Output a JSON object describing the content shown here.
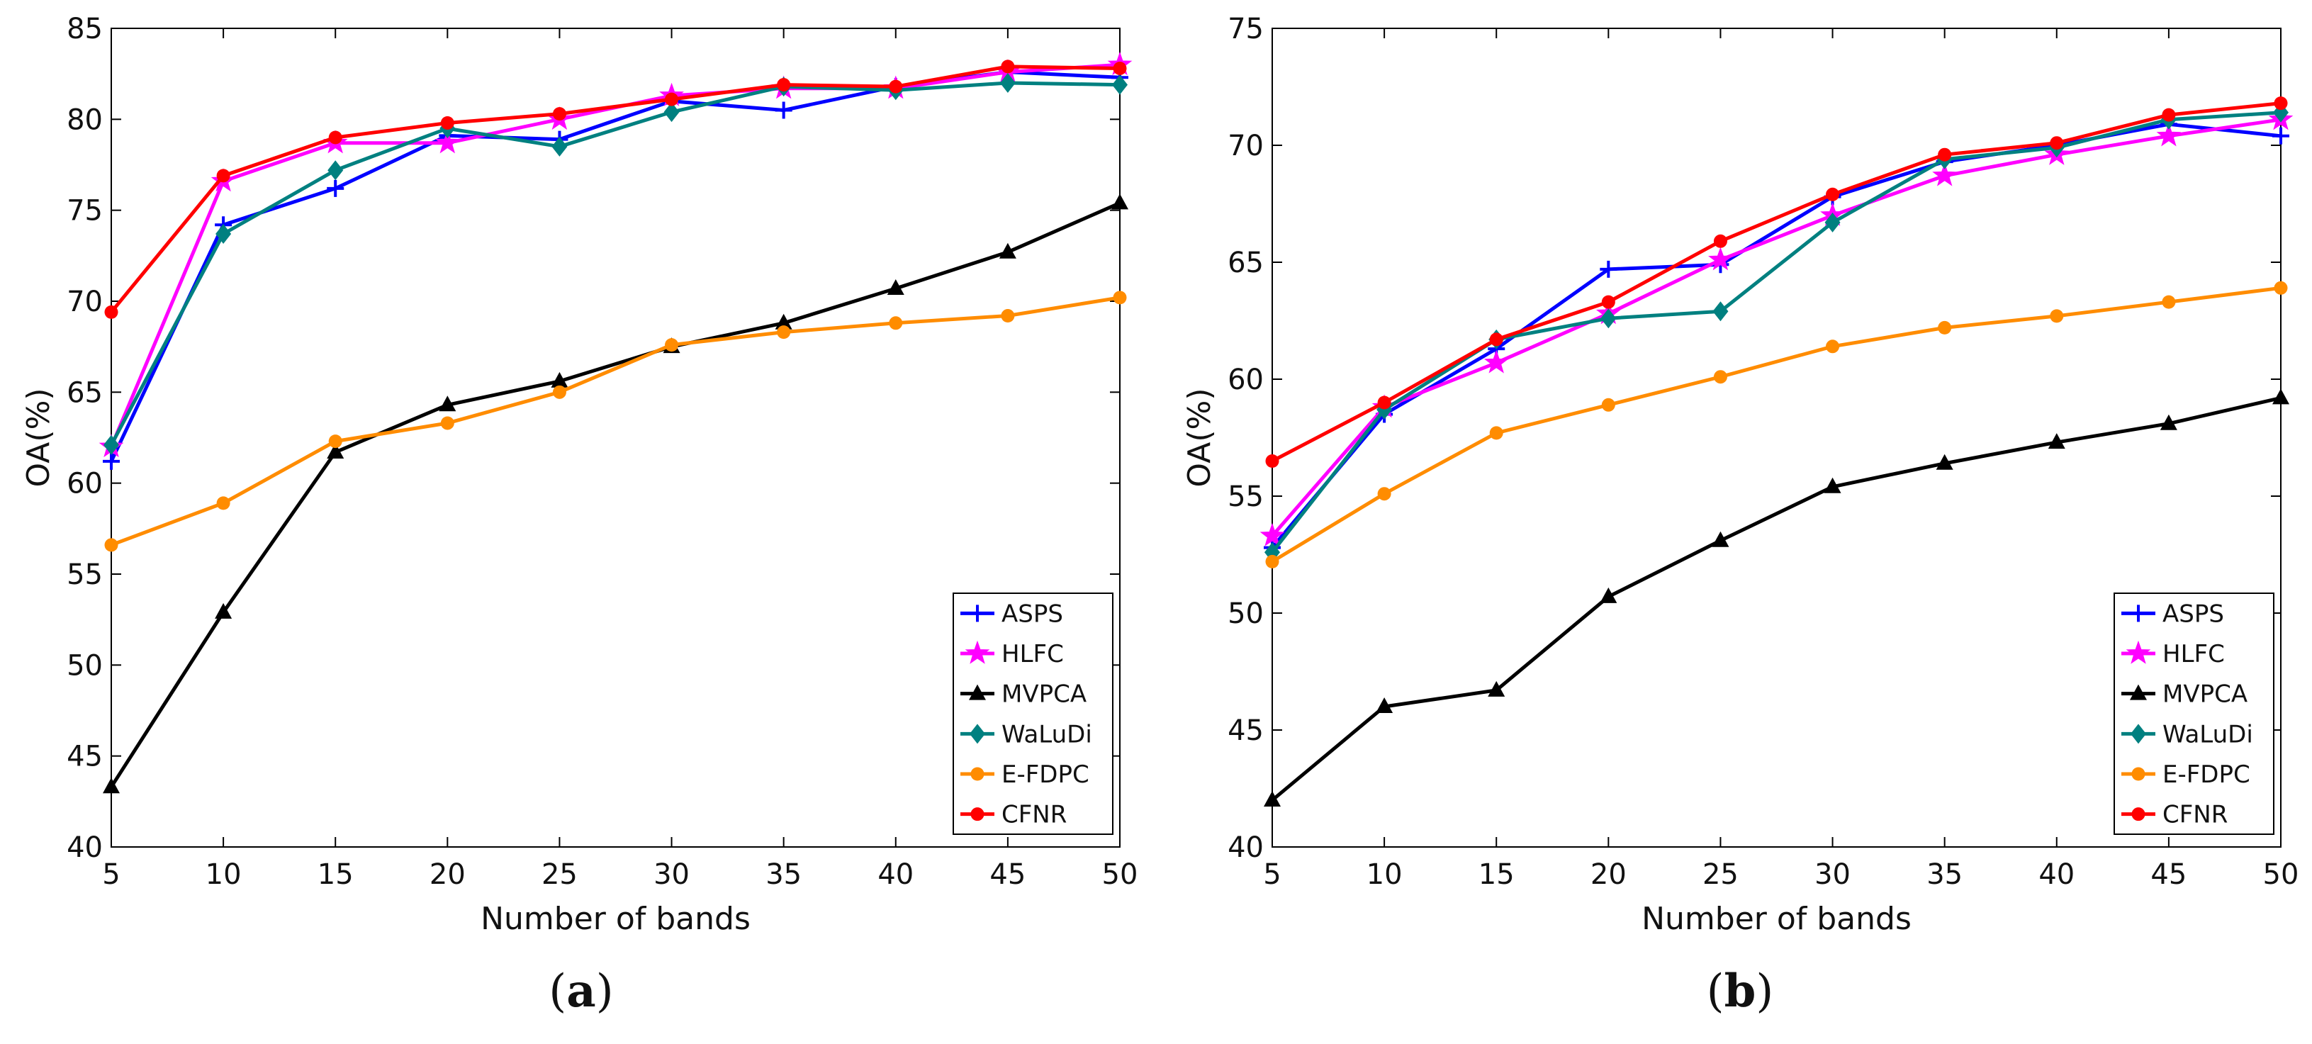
{
  "chart_data": [
    {
      "type": "line",
      "panel_label": "a",
      "xlabel": "Number of bands",
      "ylabel": "OA(%)",
      "xlim": [
        5,
        50
      ],
      "ylim": [
        40,
        85
      ],
      "xticks": [
        5,
        10,
        15,
        20,
        25,
        30,
        35,
        40,
        45,
        50
      ],
      "yticks": [
        40,
        45,
        50,
        55,
        60,
        65,
        70,
        75,
        80,
        85
      ],
      "x": [
        5,
        10,
        15,
        20,
        25,
        30,
        35,
        40,
        45,
        50
      ],
      "legend_position": "bottom-right",
      "series": [
        {
          "name": "ASPS",
          "color": "#0000ff",
          "marker": "plus",
          "values": [
            61.2,
            74.2,
            76.2,
            79.1,
            78.9,
            81.0,
            80.5,
            81.8,
            82.6,
            82.3
          ]
        },
        {
          "name": "HLFC",
          "color": "#ff00ff",
          "marker": "star",
          "values": [
            62.0,
            76.6,
            78.7,
            78.7,
            80.0,
            81.3,
            81.7,
            81.7,
            82.6,
            83.0
          ]
        },
        {
          "name": "MVPCA",
          "color": "#000000",
          "marker": "triangle",
          "values": [
            43.3,
            52.9,
            61.7,
            64.3,
            65.6,
            67.5,
            68.8,
            70.7,
            72.7,
            75.4
          ]
        },
        {
          "name": "WaLuDi",
          "color": "#008080",
          "marker": "diamond",
          "values": [
            62.1,
            73.7,
            77.2,
            79.5,
            78.5,
            80.4,
            81.8,
            81.6,
            82.0,
            81.9
          ]
        },
        {
          "name": "E-FDPC",
          "color": "#ff8c00",
          "marker": "circle",
          "values": [
            56.6,
            58.9,
            62.3,
            63.3,
            65.0,
            67.6,
            68.3,
            68.8,
            69.2,
            70.2
          ]
        },
        {
          "name": "CFNR",
          "color": "#ff0000",
          "marker": "circle",
          "values": [
            69.4,
            76.9,
            79.0,
            79.8,
            80.3,
            81.1,
            81.9,
            81.8,
            82.9,
            82.8
          ]
        }
      ]
    },
    {
      "type": "line",
      "panel_label": "b",
      "xlabel": "Number of bands",
      "ylabel": "OA(%)",
      "xlim": [
        5,
        50
      ],
      "ylim": [
        40,
        75
      ],
      "xticks": [
        5,
        10,
        15,
        20,
        25,
        30,
        35,
        40,
        45,
        50
      ],
      "yticks": [
        40,
        45,
        50,
        55,
        60,
        65,
        70,
        75
      ],
      "x": [
        5,
        10,
        15,
        20,
        25,
        30,
        35,
        40,
        45,
        50
      ],
      "legend_position": "bottom-right",
      "series": [
        {
          "name": "ASPS",
          "color": "#0000ff",
          "marker": "plus",
          "values": [
            52.8,
            58.5,
            61.3,
            64.7,
            64.9,
            67.8,
            69.3,
            70.0,
            70.9,
            70.4
          ]
        },
        {
          "name": "HLFC",
          "color": "#ff00ff",
          "marker": "star",
          "values": [
            53.3,
            58.8,
            60.7,
            62.8,
            65.1,
            67.0,
            68.7,
            69.6,
            70.4,
            71.1
          ]
        },
        {
          "name": "MVPCA",
          "color": "#000000",
          "marker": "triangle",
          "values": [
            42.0,
            46.0,
            46.7,
            50.7,
            53.1,
            55.4,
            56.4,
            57.3,
            58.1,
            59.2
          ]
        },
        {
          "name": "WaLuDi",
          "color": "#008080",
          "marker": "diamond",
          "values": [
            52.6,
            58.7,
            61.7,
            62.6,
            62.9,
            66.7,
            69.4,
            69.9,
            71.1,
            71.4
          ]
        },
        {
          "name": "E-FDPC",
          "color": "#ff8c00",
          "marker": "circle",
          "values": [
            52.2,
            55.1,
            57.7,
            58.9,
            60.1,
            61.4,
            62.2,
            62.7,
            63.3,
            63.9
          ]
        },
        {
          "name": "CFNR",
          "color": "#ff0000",
          "marker": "circle",
          "values": [
            56.5,
            59.0,
            61.7,
            63.3,
            65.9,
            67.9,
            69.6,
            70.1,
            71.3,
            71.8
          ]
        }
      ]
    }
  ]
}
